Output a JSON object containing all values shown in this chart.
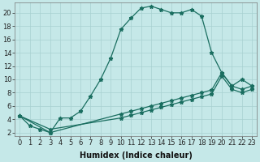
{
  "xlabel": "Humidex (Indice chaleur)",
  "bg_color": "#c5e8e8",
  "line_color": "#1a6e60",
  "grid_color": "#a8d0d0",
  "line1_x": [
    0,
    1,
    2,
    3,
    4,
    5,
    6,
    7,
    8,
    9,
    10,
    11,
    12,
    13,
    14,
    15,
    16,
    17,
    18,
    19,
    20,
    21,
    22,
    23
  ],
  "line1_y": [
    4.5,
    3.0,
    2.5,
    2.0,
    4.2,
    4.2,
    5.2,
    7.5,
    10.0,
    13.2,
    17.5,
    19.2,
    20.7,
    21.0,
    20.5,
    20.0,
    20.0,
    20.5,
    19.5,
    14.0,
    11.0,
    9.0,
    10.0,
    9.0
  ],
  "line2_x": [
    0,
    3,
    10,
    11,
    12,
    13,
    14,
    15,
    16,
    17,
    18,
    19,
    20,
    21,
    22,
    23
  ],
  "line2_y": [
    4.5,
    2.0,
    4.8,
    5.2,
    5.6,
    6.0,
    6.4,
    6.8,
    7.2,
    7.6,
    8.0,
    8.4,
    11.0,
    9.0,
    8.5,
    9.0
  ],
  "line3_x": [
    0,
    3,
    10,
    11,
    12,
    13,
    14,
    15,
    16,
    17,
    18,
    19,
    20,
    21,
    22,
    23
  ],
  "line3_y": [
    4.5,
    2.5,
    4.2,
    4.6,
    5.0,
    5.4,
    5.8,
    6.2,
    6.6,
    7.0,
    7.4,
    7.8,
    10.5,
    8.5,
    8.0,
    8.5
  ],
  "xlim": [
    -0.5,
    23.5
  ],
  "ylim": [
    1.5,
    21.5
  ],
  "yticks": [
    2,
    4,
    6,
    8,
    10,
    12,
    14,
    16,
    18,
    20
  ],
  "xticks": [
    0,
    1,
    2,
    3,
    4,
    5,
    6,
    7,
    8,
    9,
    10,
    11,
    12,
    13,
    14,
    15,
    16,
    17,
    18,
    19,
    20,
    21,
    22,
    23
  ],
  "tick_fontsize": 6,
  "xlabel_fontsize": 7,
  "marker": "*",
  "markersize": 3.5,
  "linewidth": 0.9
}
